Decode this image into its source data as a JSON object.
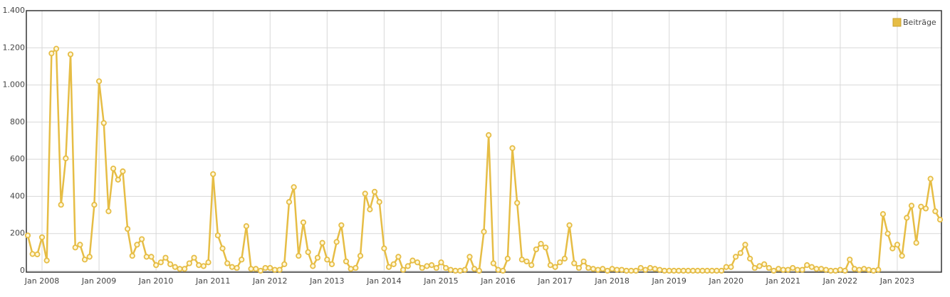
{
  "chart_data": {
    "type": "line",
    "x": [
      "2007-10",
      "2007-11",
      "2007-12",
      "2008-01",
      "2008-02",
      "2008-03",
      "2008-04",
      "2008-05",
      "2008-06",
      "2008-07",
      "2008-08",
      "2008-09",
      "2008-10",
      "2008-11",
      "2008-12",
      "2009-01",
      "2009-02",
      "2009-03",
      "2009-04",
      "2009-05",
      "2009-06",
      "2009-07",
      "2009-08",
      "2009-09",
      "2009-10",
      "2009-11",
      "2009-12",
      "2010-01",
      "2010-02",
      "2010-03",
      "2010-04",
      "2010-05",
      "2010-06",
      "2010-07",
      "2010-08",
      "2010-09",
      "2010-10",
      "2010-11",
      "2010-12",
      "2011-01",
      "2011-02",
      "2011-03",
      "2011-04",
      "2011-05",
      "2011-06",
      "2011-07",
      "2011-08",
      "2011-09",
      "2011-10",
      "2011-11",
      "2011-12",
      "2012-01",
      "2012-02",
      "2012-03",
      "2012-04",
      "2012-05",
      "2012-06",
      "2012-07",
      "2012-08",
      "2012-09",
      "2012-10",
      "2012-11",
      "2012-12",
      "2013-01",
      "2013-02",
      "2013-03",
      "2013-04",
      "2013-05",
      "2013-06",
      "2013-07",
      "2013-08",
      "2013-09",
      "2013-10",
      "2013-11",
      "2013-12",
      "2014-01",
      "2014-02",
      "2014-03",
      "2014-04",
      "2014-05",
      "2014-06",
      "2014-07",
      "2014-08",
      "2014-09",
      "2014-10",
      "2014-11",
      "2014-12",
      "2015-01",
      "2015-02",
      "2015-03",
      "2015-04",
      "2015-05",
      "2015-06",
      "2015-07",
      "2015-08",
      "2015-09",
      "2015-10",
      "2015-11",
      "2015-12",
      "2016-01",
      "2016-02",
      "2016-03",
      "2016-04",
      "2016-05",
      "2016-06",
      "2016-07",
      "2016-08",
      "2016-09",
      "2016-10",
      "2016-11",
      "2016-12",
      "2017-01",
      "2017-02",
      "2017-03",
      "2017-04",
      "2017-05",
      "2017-06",
      "2017-07",
      "2017-08",
      "2017-09",
      "2017-10",
      "2017-11",
      "2017-12",
      "2018-01",
      "2018-02",
      "2018-03",
      "2018-04",
      "2018-05",
      "2018-06",
      "2018-07",
      "2018-08",
      "2018-09",
      "2018-10",
      "2018-11",
      "2018-12",
      "2019-01",
      "2019-02",
      "2019-03",
      "2019-04",
      "2019-05",
      "2019-06",
      "2019-07",
      "2019-08",
      "2019-09",
      "2019-10",
      "2019-11",
      "2019-12",
      "2020-01",
      "2020-02",
      "2020-03",
      "2020-04",
      "2020-05",
      "2020-06",
      "2020-07",
      "2020-08",
      "2020-09",
      "2020-10",
      "2020-11",
      "2020-12",
      "2021-01",
      "2021-02",
      "2021-03",
      "2021-04",
      "2021-05",
      "2021-06",
      "2021-07",
      "2021-08",
      "2021-09",
      "2021-10",
      "2021-11",
      "2021-12",
      "2022-01",
      "2022-02",
      "2022-03",
      "2022-04",
      "2022-05",
      "2022-06",
      "2022-07",
      "2022-08",
      "2022-09",
      "2022-10",
      "2022-11",
      "2022-12",
      "2023-01",
      "2023-02",
      "2023-03",
      "2023-04",
      "2023-05",
      "2023-06",
      "2023-07",
      "2023-08",
      "2023-09",
      "2023-10"
    ],
    "series": [
      {
        "name": "Beiträge",
        "color": "#e6bd45",
        "values": [
          190,
          90,
          88,
          180,
          55,
          1170,
          1195,
          355,
          605,
          1165,
          125,
          140,
          60,
          75,
          355,
          1020,
          795,
          320,
          550,
          490,
          535,
          225,
          80,
          140,
          170,
          75,
          75,
          30,
          45,
          70,
          35,
          20,
          10,
          10,
          40,
          70,
          30,
          25,
          45,
          520,
          190,
          120,
          40,
          20,
          15,
          60,
          240,
          10,
          10,
          0,
          15,
          15,
          5,
          5,
          35,
          370,
          450,
          80,
          260,
          100,
          25,
          70,
          150,
          60,
          35,
          155,
          245,
          50,
          10,
          15,
          80,
          415,
          330,
          425,
          370,
          120,
          20,
          35,
          75,
          5,
          25,
          55,
          45,
          15,
          25,
          30,
          15,
          45,
          15,
          5,
          0,
          0,
          5,
          75,
          10,
          0,
          210,
          730,
          40,
          5,
          0,
          65,
          660,
          365,
          60,
          50,
          30,
          115,
          145,
          125,
          30,
          20,
          45,
          65,
          245,
          40,
          15,
          50,
          15,
          10,
          5,
          10,
          0,
          10,
          5,
          5,
          0,
          0,
          0,
          15,
          5,
          15,
          10,
          5,
          0,
          0,
          0,
          0,
          0,
          0,
          0,
          0,
          0,
          0,
          0,
          0,
          0,
          20,
          20,
          75,
          95,
          140,
          65,
          15,
          25,
          35,
          15,
          0,
          10,
          5,
          5,
          15,
          5,
          5,
          30,
          20,
          10,
          10,
          5,
          0,
          0,
          5,
          0,
          60,
          10,
          5,
          10,
          5,
          0,
          5,
          305,
          200,
          120,
          140,
          80,
          285,
          350,
          150,
          345,
          335,
          495,
          320,
          275
        ]
      }
    ],
    "xlim": [
      "2007-10",
      "2023-10"
    ],
    "xticks": [
      {
        "value": "2008-01",
        "label": "Jan 2008"
      },
      {
        "value": "2009-01",
        "label": "Jan 2009"
      },
      {
        "value": "2010-01",
        "label": "Jan 2010"
      },
      {
        "value": "2011-01",
        "label": "Jan 2011"
      },
      {
        "value": "2012-01",
        "label": "Jan 2012"
      },
      {
        "value": "2013-01",
        "label": "Jan 2013"
      },
      {
        "value": "2014-01",
        "label": "Jan 2014"
      },
      {
        "value": "2015-01",
        "label": "Jan 2015"
      },
      {
        "value": "2016-01",
        "label": "Jan 2016"
      },
      {
        "value": "2017-01",
        "label": "Jan 2017"
      },
      {
        "value": "2018-01",
        "label": "Jan 2018"
      },
      {
        "value": "2019-01",
        "label": "Jan 2019"
      },
      {
        "value": "2020-01",
        "label": "Jan 2020"
      },
      {
        "value": "2021-01",
        "label": "Jan 2021"
      },
      {
        "value": "2022-01",
        "label": "Jan 2022"
      },
      {
        "value": "2023-01",
        "label": "Jan 2023"
      }
    ],
    "ylim": [
      0,
      1400
    ],
    "yticks": [
      0,
      200,
      400,
      600,
      800,
      {
        "value": 1000,
        "label": "1.000"
      },
      {
        "value": 1200,
        "label": "1.200"
      },
      {
        "value": 1400,
        "label": "1.400"
      }
    ],
    "grid": true,
    "legend": "top-right"
  }
}
